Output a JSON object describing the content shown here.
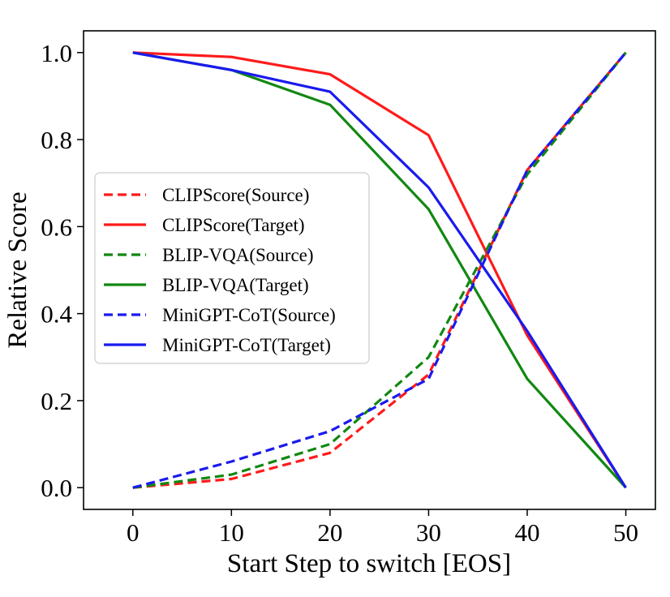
{
  "chart_data": {
    "type": "line",
    "xlabel": "Start Step to switch [EOS]",
    "ylabel": "Relative Score",
    "xlim": [
      -5,
      53
    ],
    "ylim": [
      -0.05,
      1.05
    ],
    "xticks": [
      0,
      10,
      20,
      30,
      40,
      50
    ],
    "yticks": [
      0.0,
      0.2,
      0.4,
      0.6,
      0.8,
      1.0
    ],
    "xtick_labels": [
      "0",
      "10",
      "20",
      "30",
      "40",
      "50"
    ],
    "ytick_labels": [
      "0.0",
      "0.2",
      "0.4",
      "0.6",
      "0.8",
      "1.0"
    ],
    "grid": false,
    "legend_position": "center-left",
    "x": [
      0,
      10,
      20,
      30,
      40,
      50
    ],
    "series": [
      {
        "name": "CLIPScore(Source)",
        "color": "#ff1a1a",
        "style": "dashed",
        "values": [
          0.0,
          0.02,
          0.08,
          0.26,
          0.73,
          1.0
        ]
      },
      {
        "name": "CLIPScore(Target)",
        "color": "#ff1a1a",
        "style": "solid",
        "values": [
          1.0,
          0.99,
          0.95,
          0.81,
          0.35,
          0.0
        ]
      },
      {
        "name": "BLIP-VQA(Source)",
        "color": "#118811",
        "style": "dashed",
        "values": [
          0.0,
          0.03,
          0.1,
          0.3,
          0.72,
          1.0
        ]
      },
      {
        "name": "BLIP-VQA(Target)",
        "color": "#118811",
        "style": "solid",
        "values": [
          1.0,
          0.96,
          0.88,
          0.64,
          0.25,
          0.0
        ]
      },
      {
        "name": "MiniGPT-CoT(Source)",
        "color": "#1a1aee",
        "style": "dashed",
        "values": [
          0.0,
          0.06,
          0.13,
          0.25,
          0.73,
          1.0
        ]
      },
      {
        "name": "MiniGPT-CoT(Target)",
        "color": "#1a1aee",
        "style": "solid",
        "values": [
          1.0,
          0.96,
          0.91,
          0.69,
          0.36,
          0.0
        ]
      }
    ]
  }
}
